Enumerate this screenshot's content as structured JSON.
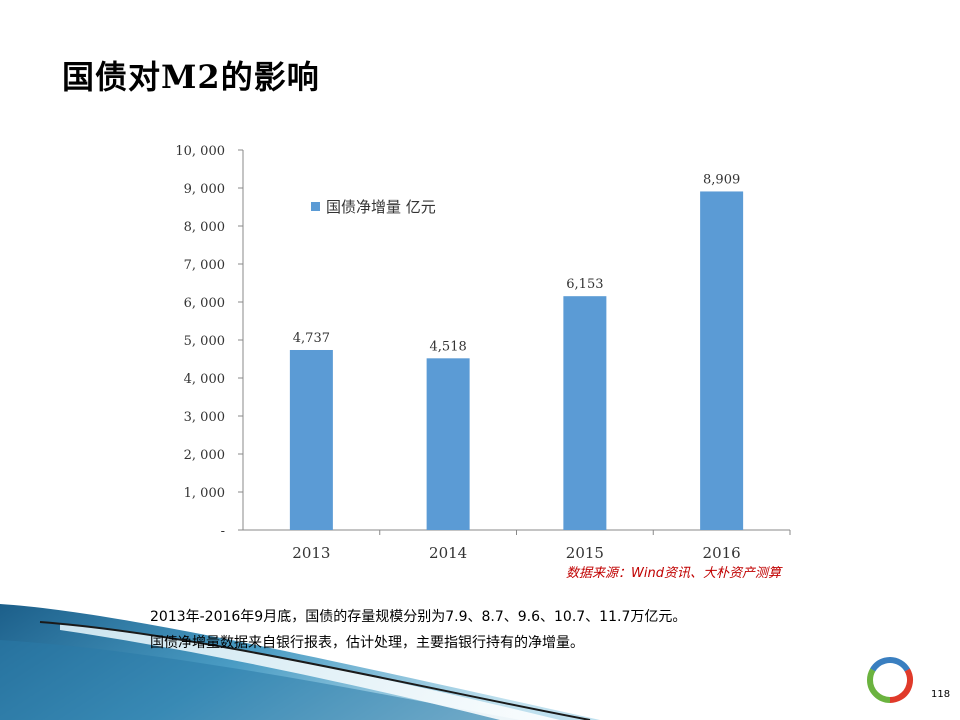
{
  "slide": {
    "title": "国债对M2的影响",
    "source_note": "数据来源：Wind资讯、大朴资产测算",
    "body_lines": [
      "2013年-2016年9月底，国债的存量规模分别为7.9、8.7、9.6、10.7、11.7万亿元。",
      "国债净增量数据来自银行报表，估计处理，主要指银行持有的净增量。"
    ],
    "page_number": "118"
  },
  "chart_data": {
    "type": "bar",
    "categories": [
      "2013",
      "2014",
      "2015",
      "2016"
    ],
    "series": [
      {
        "name": "国债净增量 亿元",
        "values": [
          4737,
          4518,
          6153,
          8909
        ],
        "color": "#5b9bd5"
      }
    ],
    "data_labels": [
      "4,737",
      "4,518",
      "6,153",
      "8,909"
    ],
    "y_ticks": [
      "-",
      "1, 000",
      "2, 000",
      "3, 000",
      "4, 000",
      "5, 000",
      "6, 000",
      "7, 000",
      "8, 000",
      "9, 000",
      "10, 000"
    ],
    "ylim": [
      0,
      10000
    ],
    "legend_position": "top-left",
    "grid": false
  }
}
